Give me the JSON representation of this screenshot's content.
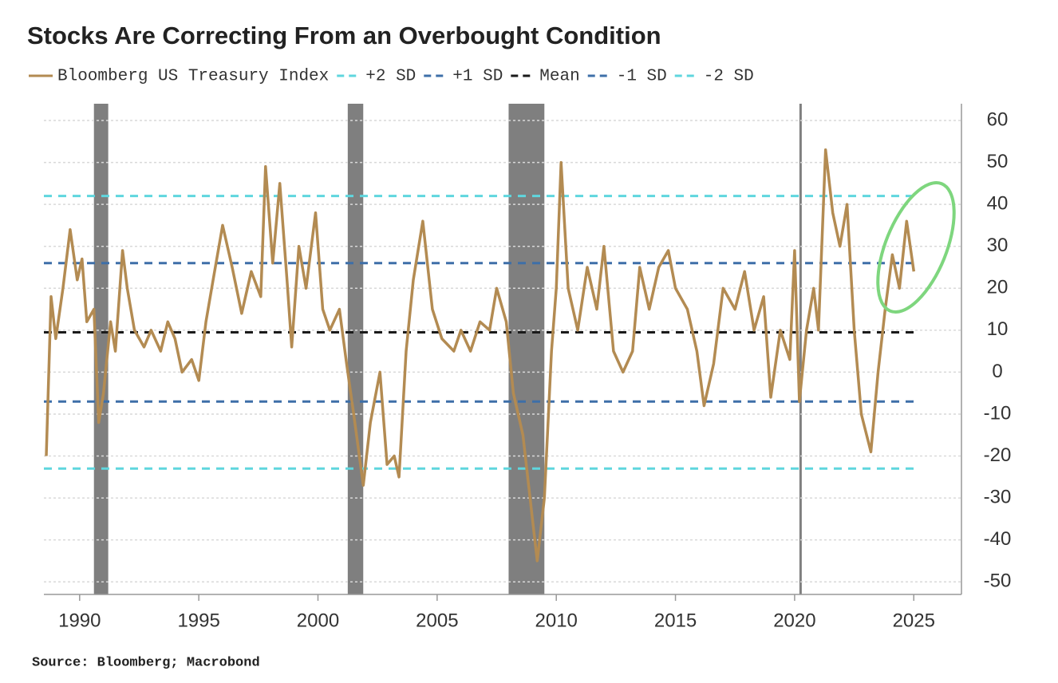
{
  "chart_data": {
    "type": "line",
    "title": "Stocks Are Correcting From an Overbought Condition",
    "source": "Source: Bloomberg; Macrobond",
    "xlim": [
      1988.5,
      2027
    ],
    "xticks": [
      1990,
      1995,
      2000,
      2005,
      2010,
      2015,
      2020,
      2025
    ],
    "ylim": [
      -53,
      64
    ],
    "yticks": [
      -50,
      -40,
      -30,
      -20,
      -10,
      0,
      10,
      20,
      30,
      40,
      50,
      60
    ],
    "grid": true,
    "y_axis_side": "right",
    "recessions": [
      [
        1990.6,
        1991.2
      ],
      [
        2001.25,
        2001.9
      ],
      [
        2008.0,
        2009.5
      ],
      [
        2020.2,
        2020.3
      ]
    ],
    "recession_color": "#7f7f7f",
    "series": [
      {
        "name": "Bloomberg US Treasury Index",
        "color": "#b38b52",
        "x": [
          1988.6,
          1988.8,
          1989.0,
          1989.3,
          1989.6,
          1989.9,
          1990.1,
          1990.3,
          1990.6,
          1990.8,
          1991.0,
          1991.3,
          1991.5,
          1991.8,
          1992.0,
          1992.3,
          1992.7,
          1993.0,
          1993.4,
          1993.7,
          1994.0,
          1994.3,
          1994.7,
          1995.0,
          1995.3,
          1995.6,
          1996.0,
          1996.4,
          1996.8,
          1997.2,
          1997.6,
          1997.8,
          1998.1,
          1998.4,
          1998.7,
          1998.9,
          1999.2,
          1999.5,
          1999.9,
          2000.2,
          2000.5,
          2000.9,
          2001.2,
          2001.5,
          2001.9,
          2002.2,
          2002.6,
          2002.9,
          2003.2,
          2003.4,
          2003.7,
          2004.0,
          2004.4,
          2004.8,
          2005.2,
          2005.7,
          2006.0,
          2006.4,
          2006.8,
          2007.2,
          2007.5,
          2007.9,
          2008.2,
          2008.6,
          2009.0,
          2009.2,
          2009.5,
          2009.8,
          2010.0,
          2010.2,
          2010.5,
          2010.9,
          2011.3,
          2011.7,
          2012.0,
          2012.4,
          2012.8,
          2013.2,
          2013.5,
          2013.9,
          2014.3,
          2014.7,
          2015.0,
          2015.5,
          2015.9,
          2016.2,
          2016.6,
          2017.0,
          2017.5,
          2017.9,
          2018.3,
          2018.7,
          2019.0,
          2019.4,
          2019.8,
          2020.0,
          2020.2,
          2020.5,
          2020.8,
          2021.0,
          2021.3,
          2021.6,
          2021.9,
          2022.2,
          2022.5,
          2022.8,
          2023.2,
          2023.5,
          2023.8,
          2024.1,
          2024.4,
          2024.7,
          2025.0
        ],
        "values": [
          -20,
          18,
          8,
          20,
          34,
          22,
          27,
          12,
          15,
          -12,
          -5,
          12,
          5,
          29,
          20,
          10,
          6,
          10,
          5,
          12,
          8,
          0,
          3,
          -2,
          12,
          22,
          35,
          25,
          14,
          24,
          18,
          49,
          26,
          45,
          22,
          6,
          30,
          20,
          38,
          15,
          10,
          15,
          2,
          -10,
          -27,
          -12,
          0,
          -22,
          -20,
          -25,
          5,
          22,
          36,
          15,
          8,
          5,
          10,
          5,
          12,
          10,
          20,
          12,
          -5,
          -15,
          -35,
          -45,
          -30,
          5,
          20,
          50,
          20,
          10,
          25,
          15,
          30,
          5,
          0,
          5,
          25,
          15,
          25,
          29,
          20,
          15,
          5,
          -8,
          2,
          20,
          15,
          24,
          10,
          18,
          -6,
          10,
          3,
          29,
          -7,
          10,
          20,
          10,
          53,
          38,
          30,
          40,
          10,
          -10,
          -19,
          0,
          15,
          28,
          20,
          36,
          24
        ]
      }
    ],
    "reference_lines": [
      {
        "name": "+2 SD",
        "color": "#5fd6de",
        "value": 42
      },
      {
        "name": "+1 SD",
        "color": "#3e6fa8",
        "value": 26
      },
      {
        "name": "Mean",
        "color": "#1a1a1a",
        "value": 9.5
      },
      {
        "name": "-1 SD",
        "color": "#3e6fa8",
        "value": -7
      },
      {
        "name": "-2 SD",
        "color": "#5fd6de",
        "value": -23
      }
    ]
  }
}
